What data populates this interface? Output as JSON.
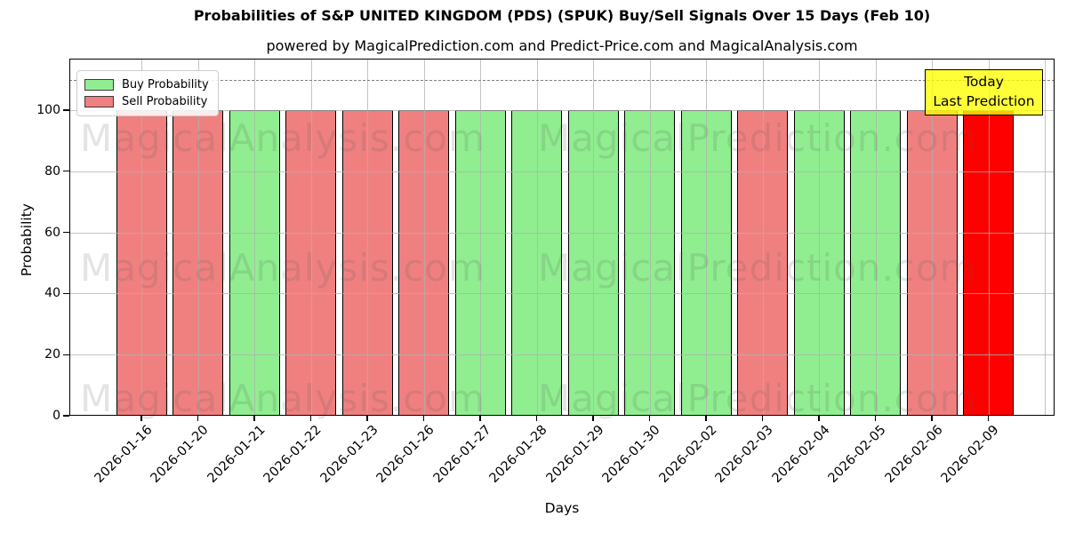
{
  "chart_data": {
    "type": "bar",
    "title": "Probabilities of S&P UNITED KINGDOM (PDS) (SPUK) Buy/Sell Signals Over 15 Days (Feb 10)",
    "subtitle": "powered by MagicalPrediction.com and Predict-Price.com and MagicalAnalysis.com",
    "xlabel": "Days",
    "ylabel": "Probability",
    "ylim": [
      0,
      117
    ],
    "yticks": [
      0,
      20,
      40,
      60,
      80,
      100
    ],
    "dashed_threshold_y": 110,
    "grid": true,
    "legend_position": "upper-left",
    "categories": [
      "2026-01-16",
      "2026-01-20",
      "2026-01-21",
      "2026-01-22",
      "2026-01-23",
      "2026-01-26",
      "2026-01-27",
      "2026-01-28",
      "2026-01-29",
      "2026-01-30",
      "2026-02-02",
      "2026-02-03",
      "2026-02-04",
      "2026-02-05",
      "2026-02-06",
      "2026-02-09"
    ],
    "series": [
      {
        "name": "Buy Probability",
        "color": "#90EE90",
        "values": [
          0,
          0,
          100,
          0,
          0,
          0,
          100,
          100,
          100,
          100,
          100,
          0,
          100,
          100,
          0,
          0
        ]
      },
      {
        "name": "Sell Probability",
        "color": "#F08080",
        "values": [
          100,
          100,
          0,
          100,
          100,
          100,
          0,
          0,
          0,
          0,
          0,
          100,
          0,
          0,
          100,
          100
        ]
      }
    ],
    "bar_signals": [
      "sell",
      "sell",
      "buy",
      "sell",
      "sell",
      "sell",
      "buy",
      "buy",
      "buy",
      "buy",
      "buy",
      "sell",
      "buy",
      "buy",
      "sell",
      "sell"
    ],
    "today_bar_index": 15,
    "today_bar_color": "#FF0000",
    "legend": {
      "entries": [
        {
          "label": "Buy Probability",
          "color": "#90EE90"
        },
        {
          "label": "Sell Probability",
          "color": "#F08080"
        }
      ]
    },
    "annotation": {
      "lines": [
        "Today",
        "Last Prediction"
      ],
      "bg_color": "#FFFF00"
    },
    "watermarks": {
      "left_text": "MagicalAnalysis.com",
      "right_text": "MagicalPrediction.com",
      "rows": 3
    }
  },
  "colors": {
    "buy": "#90EE90",
    "sell": "#F08080",
    "today": "#FF0000",
    "annotation_bg": "#FFFF00",
    "grid": "#b0b0b0",
    "dashed_line": "#7f7f7f",
    "axis": "#000000"
  }
}
